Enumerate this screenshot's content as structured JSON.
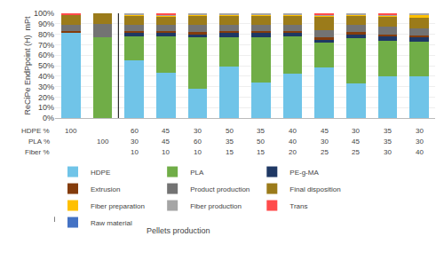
{
  "chart_data": {
    "type": "bar",
    "stacked": true,
    "ylabel": "ReCiPe EndPpoint (H)  mPt",
    "categories": [
      null,
      null,
      null,
      null,
      null,
      null,
      null,
      null,
      null,
      null,
      null,
      null
    ],
    "series": [
      {
        "name": "HDPE",
        "color": "#70C4E8",
        "values": [
          82,
          0,
          55,
          43,
          28,
          49,
          34,
          42,
          48,
          33,
          40,
          40
        ]
      },
      {
        "name": "PLA",
        "color": "#70AD47",
        "values": [
          0,
          77,
          23,
          35,
          49,
          28,
          43,
          36,
          24,
          43,
          34,
          33
        ]
      },
      {
        "name": "PE-g-MA",
        "color": "#1F3864",
        "values": [
          0,
          0,
          3,
          3,
          3,
          4,
          4,
          3,
          3,
          4,
          4,
          4
        ]
      },
      {
        "name": "Extrusion",
        "color": "#843C0C",
        "values": [
          1,
          0,
          2,
          2,
          2,
          2,
          2,
          2,
          2,
          2,
          2,
          2
        ]
      },
      {
        "name": "Product production",
        "color": "#737373",
        "values": [
          6,
          13,
          6,
          6,
          7,
          6,
          6,
          6,
          7,
          7,
          7,
          7
        ]
      },
      {
        "name": "Final disposition",
        "color": "#9B7B1A",
        "values": [
          10,
          10,
          9,
          8,
          9,
          9,
          9,
          9,
          13,
          9,
          10,
          10
        ]
      },
      {
        "name": "Fiber preparation",
        "color": "#FFC000",
        "values": [
          0,
          0,
          1,
          1,
          1,
          1,
          1,
          1,
          1,
          1,
          1,
          2
        ]
      },
      {
        "name": "Fiber production",
        "color": "#A5A5A5",
        "values": [
          0,
          0,
          1,
          1,
          1,
          1,
          1,
          1,
          1,
          1,
          1,
          2
        ]
      },
      {
        "name": "Trans",
        "color": "#FF4B4B",
        "values": [
          1,
          0,
          0,
          1,
          0,
          0,
          0,
          0,
          1,
          0,
          1,
          0
        ]
      },
      {
        "name": "Raw material",
        "color": "#4472C4",
        "values": [
          0,
          0,
          0,
          0,
          0,
          0,
          0,
          0,
          0,
          0,
          0,
          0
        ]
      }
    ],
    "table_rows": [
      {
        "label": "HDPE %",
        "values": [
          100,
          null,
          60,
          45,
          30,
          50,
          35,
          40,
          45,
          30,
          35,
          30
        ]
      },
      {
        "label": "PLA %",
        "values": [
          null,
          100,
          30,
          45,
          60,
          35,
          50,
          40,
          30,
          45,
          35,
          30
        ]
      },
      {
        "label": "Fiber %",
        "values": [
          null,
          null,
          10,
          10,
          10,
          15,
          15,
          20,
          25,
          25,
          30,
          40
        ]
      }
    ],
    "annotations": [
      "Pellets production"
    ],
    "ylim": [
      0,
      100
    ],
    "yticks": [
      {
        "value": 0,
        "label": "0%"
      },
      {
        "value": 10,
        "label": "10%"
      },
      {
        "value": 20,
        "label": "20%"
      },
      {
        "value": 30,
        "label": "30%"
      },
      {
        "value": 40,
        "label": "40%"
      },
      {
        "value": 50,
        "label": "50%"
      },
      {
        "value": 60,
        "label": "60%"
      },
      {
        "value": 70,
        "label": "70%"
      },
      {
        "value": 80,
        "label": "80%"
      },
      {
        "value": 90,
        "label": "90%"
      },
      {
        "value": 100,
        "label": "100%"
      }
    ],
    "grid": true,
    "tick_labels": "y"
  }
}
